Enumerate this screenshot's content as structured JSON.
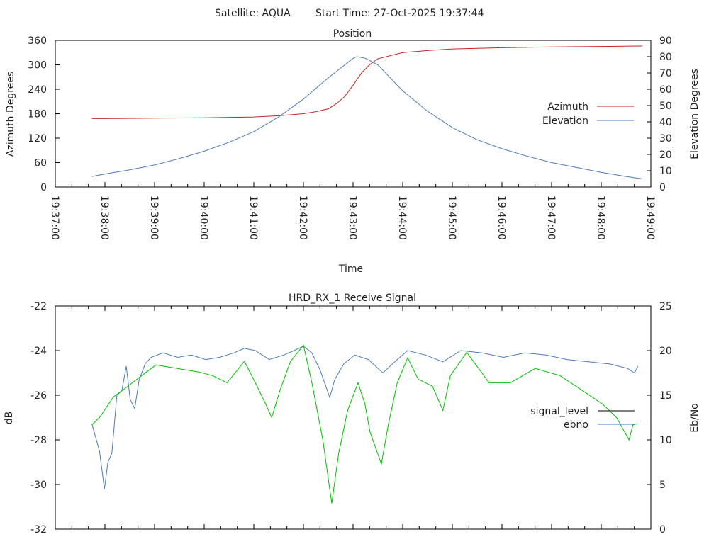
{
  "header": {
    "satellite": "Satellite: AQUA",
    "start_time": "Start Time: 27-Oct-2025 19:37:44"
  },
  "colors": {
    "azimuth": "#cc2222",
    "elevation": "#4a7bc0",
    "signal": "#4a7bc0",
    "ebno": "#00c000",
    "legend_signal": "#000000",
    "legend_ebno": "#4a7bc0"
  },
  "chart_data": [
    {
      "type": "line",
      "title": "Position",
      "xlabel": "Time",
      "ylabel": "Azimuth Degrees",
      "y2label": "Elevation Degrees",
      "xlim_minutes_after_19_37": [
        0,
        12
      ],
      "ylim": [
        0,
        360
      ],
      "y2lim": [
        0,
        90
      ],
      "x_tick_labels": [
        "19:37:00",
        "19:38:00",
        "19:39:00",
        "19:40:00",
        "19:41:00",
        "19:42:00",
        "19:43:00",
        "19:44:00",
        "19:45:00",
        "19:46:00",
        "19:47:00",
        "19:48:00",
        "19:49:00"
      ],
      "y_tick_labels": [
        "0",
        "60",
        "120",
        "180",
        "240",
        "300",
        "360"
      ],
      "y2_tick_labels": [
        "0",
        "10",
        "20",
        "30",
        "40",
        "50",
        "60",
        "70",
        "80",
        "90"
      ],
      "legend": "right",
      "series": [
        {
          "name": "Azimuth",
          "axis": "y",
          "t": [
            0.74,
            1,
            2,
            3,
            4,
            4.5,
            5,
            5.25,
            5.5,
            5.67,
            5.83,
            6,
            6.17,
            6.33,
            6.5,
            7,
            7.5,
            8,
            9,
            10,
            11,
            11.83
          ],
          "values": [
            168,
            168,
            169,
            170,
            172,
            175,
            180,
            185,
            192,
            205,
            222,
            250,
            280,
            300,
            315,
            330,
            335,
            339,
            342,
            344,
            345,
            346
          ]
        },
        {
          "name": "Elevation",
          "axis": "y2",
          "t": [
            0.74,
            1,
            1.5,
            2,
            2.5,
            3,
            3.5,
            4,
            4.5,
            5,
            5.5,
            5.75,
            6,
            6.08,
            6.25,
            6.5,
            7,
            7.5,
            8,
            8.5,
            9,
            9.5,
            10,
            10.5,
            11,
            11.5,
            11.83
          ],
          "values": [
            6.5,
            8,
            10.5,
            13.5,
            17.5,
            22,
            27.5,
            34,
            43,
            54,
            67,
            73,
            79,
            80,
            79,
            75,
            59,
            46.5,
            36.5,
            29,
            23.5,
            19,
            15,
            12,
            9,
            6.5,
            5
          ]
        }
      ]
    },
    {
      "type": "line",
      "title": "HRD_RX_1 Receive Signal",
      "ylabel": "dB",
      "y2label": "Eb/No",
      "xlim_minutes_after_19_37": [
        0,
        12
      ],
      "ylim": [
        -32,
        -22
      ],
      "y2lim": [
        0,
        25
      ],
      "y_tick_labels": [
        "-32",
        "-30",
        "-28",
        "-26",
        "-24",
        "-22"
      ],
      "y2_tick_labels": [
        "0",
        "5",
        "10",
        "15",
        "20",
        "25"
      ],
      "legend": "right",
      "series": [
        {
          "name": "signal_level",
          "axis": "y",
          "t": [
            0.74,
            0.89,
            0.99,
            1.06,
            1.14,
            1.24,
            1.34,
            1.43,
            1.51,
            1.6,
            1.69,
            1.81,
            1.93,
            2.17,
            2.46,
            2.74,
            3.03,
            3.31,
            3.6,
            3.81,
            4.03,
            4.31,
            4.6,
            4.81,
            5,
            5.17,
            5.34,
            5.53,
            5.63,
            5.81,
            6.03,
            6.31,
            6.6,
            6.89,
            7.1,
            7.46,
            7.81,
            8.17,
            8.6,
            9.03,
            9.46,
            9.89,
            10.31,
            10.74,
            11.17,
            11.53,
            11.67,
            11.74
          ],
          "values": [
            -27.3,
            -28.5,
            -30.2,
            -29,
            -28.6,
            -26,
            -25.8,
            -24.7,
            -26.2,
            -26.6,
            -25.3,
            -24.6,
            -24.3,
            -24.1,
            -24.3,
            -24.2,
            -24.4,
            -24.3,
            -24.1,
            -23.9,
            -24,
            -24.4,
            -24.2,
            -24,
            -23.8,
            -24.1,
            -24.9,
            -26.1,
            -25.3,
            -24.6,
            -24.2,
            -24.4,
            -25,
            -24.4,
            -24,
            -24.2,
            -24.5,
            -24,
            -24.1,
            -24.3,
            -24.1,
            -24.2,
            -24.4,
            -24.5,
            -24.6,
            -24.8,
            -25,
            -24.7
          ]
        },
        {
          "name": "ebno",
          "axis": "y2",
          "t": [
            0.74,
            0.89,
            1.17,
            1.46,
            1.74,
            2.03,
            2.46,
            2.89,
            3.17,
            3.46,
            3.81,
            4.03,
            4.24,
            4.36,
            4.53,
            4.74,
            5,
            5.17,
            5.39,
            5.57,
            5.71,
            5.89,
            6.1,
            6.24,
            6.34,
            6.57,
            6.71,
            6.89,
            7.1,
            7.31,
            7.6,
            7.81,
            7.96,
            8.29,
            8.53,
            8.74,
            9.17,
            9.67,
            10.17,
            10.6,
            11.03,
            11.31,
            11.56,
            11.64,
            11.74
          ],
          "values": [
            11.7,
            12.5,
            14.8,
            16,
            17.2,
            18.4,
            18,
            17.6,
            17.2,
            16.4,
            18.8,
            16.4,
            14,
            12.5,
            15.6,
            18.8,
            20.6,
            16.4,
            10,
            2.9,
            8.5,
            13.3,
            16.4,
            14,
            10.9,
            7.3,
            11.7,
            16.4,
            19.2,
            16.8,
            16,
            13.3,
            17.2,
            19.8,
            18,
            16.4,
            16.4,
            18,
            17.2,
            15.6,
            14,
            12.5,
            10,
            11.7,
            11.8
          ]
        }
      ]
    }
  ]
}
